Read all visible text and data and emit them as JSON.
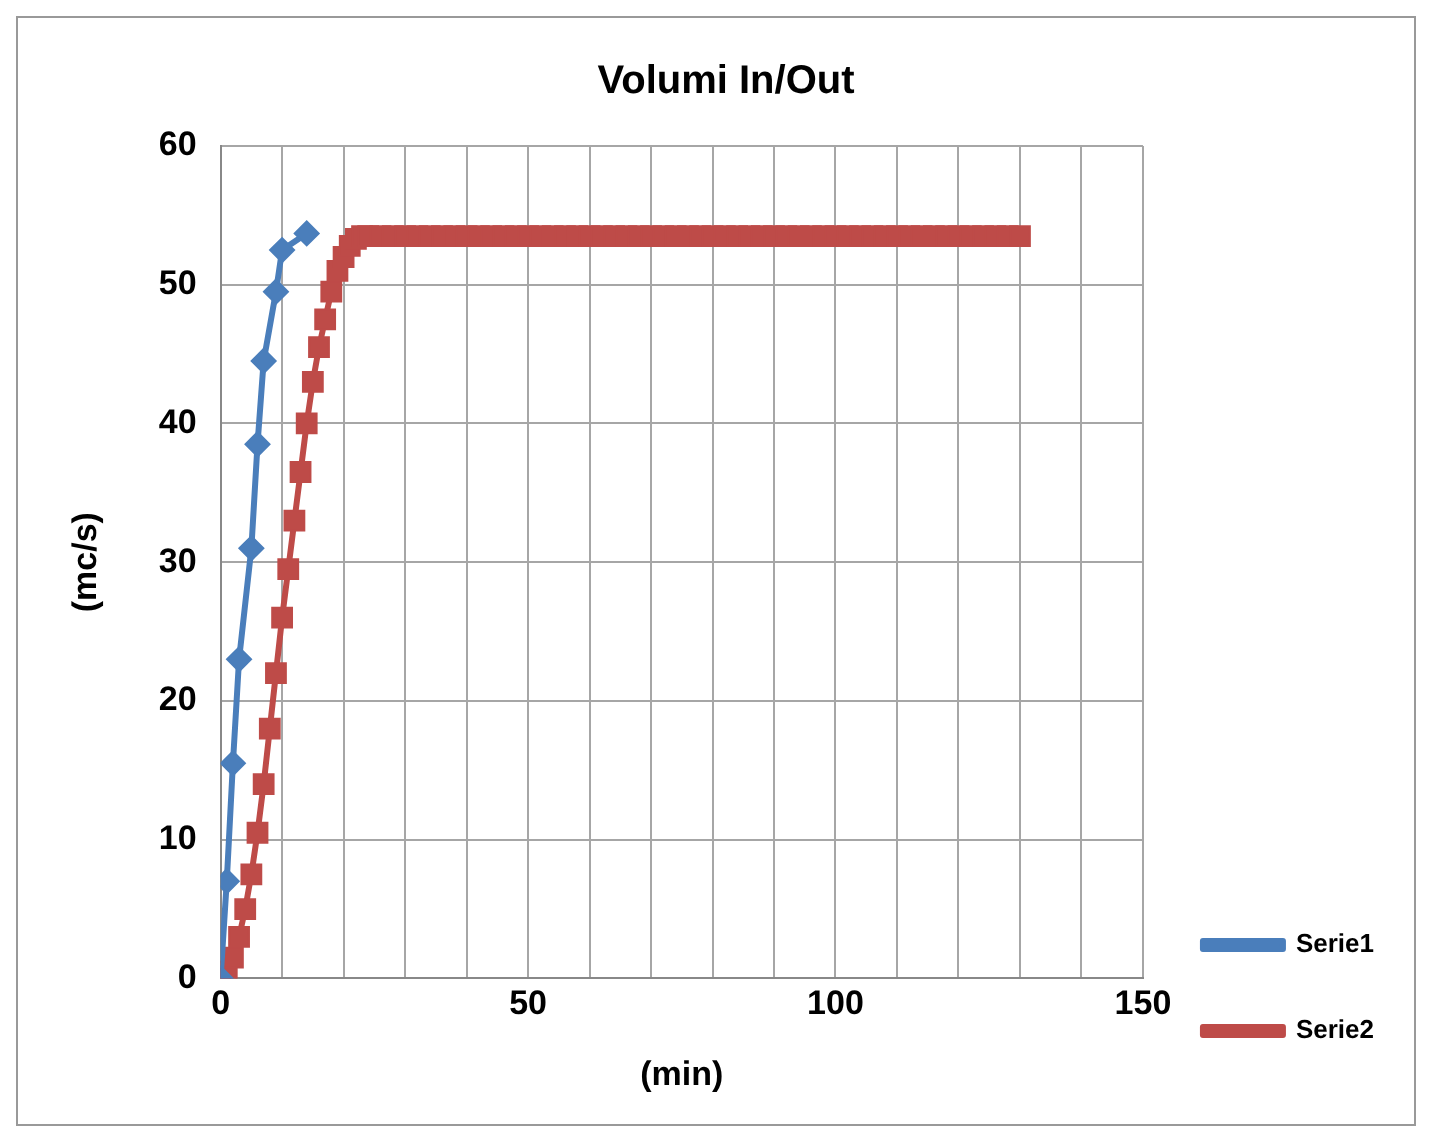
{
  "chart_data": {
    "type": "line",
    "title": "Volumi In/Out",
    "xlabel": "(min)",
    "ylabel": "(mc/s)",
    "xlim": [
      0,
      150
    ],
    "xticks": [
      0,
      {
        "value": 10,
        "label": null
      },
      {
        "value": 20,
        "label": null
      },
      {
        "value": 30,
        "label": null
      },
      {
        "value": 40,
        "label": null
      },
      50,
      {
        "value": 60,
        "label": null
      },
      {
        "value": 70,
        "label": null
      },
      {
        "value": 80,
        "label": null
      },
      {
        "value": 90,
        "label": null
      },
      100,
      {
        "value": 110,
        "label": null
      },
      {
        "value": 120,
        "label": null
      },
      {
        "value": 130,
        "label": null
      },
      {
        "value": 140,
        "label": null
      },
      150
    ],
    "ylim": [
      0,
      60
    ],
    "yticks": [
      0,
      10,
      20,
      30,
      40,
      50,
      60
    ],
    "grid": true,
    "legend": "bottom right",
    "line_style": "solid",
    "series": [
      {
        "name": "Serie1",
        "color": "#4a7ebb",
        "marker": "diamond",
        "x": [
          0,
          1,
          2,
          3,
          5,
          6,
          7,
          9,
          10,
          14
        ],
        "values": [
          0,
          7,
          15.5,
          23,
          31,
          38.5,
          44.5,
          49.5,
          52.5,
          53.7
        ]
      },
      {
        "name": "Serie2",
        "color": "#be4b48",
        "marker": "square",
        "x": [
          0,
          1,
          2,
          3,
          4,
          5,
          6,
          7,
          8,
          9,
          10,
          11,
          12,
          13,
          14,
          15,
          16,
          17,
          18,
          19,
          20,
          21,
          22,
          23,
          24,
          26,
          28,
          30,
          32,
          34,
          36,
          38,
          40,
          42,
          44,
          46,
          48,
          50,
          52,
          54,
          56,
          58,
          60,
          62,
          64,
          66,
          68,
          70,
          72,
          74,
          76,
          78,
          80,
          82,
          84,
          86,
          88,
          90,
          92,
          94,
          96,
          98,
          100,
          102,
          104,
          106,
          108,
          110,
          112,
          114,
          116,
          118,
          120,
          122,
          124,
          126,
          128,
          130
        ],
        "values": [
          0,
          0.5,
          1.5,
          3,
          5,
          7.5,
          10.5,
          14,
          18,
          22,
          26,
          29.5,
          33,
          36.5,
          40,
          43,
          45.5,
          47.5,
          49.5,
          51,
          52,
          52.8,
          53.3,
          53.5,
          53.5,
          53.5,
          53.5,
          53.5,
          53.5,
          53.5,
          53.5,
          53.5,
          53.5,
          53.5,
          53.5,
          53.5,
          53.5,
          53.5,
          53.5,
          53.5,
          53.5,
          53.5,
          53.5,
          53.5,
          53.5,
          53.5,
          53.5,
          53.5,
          53.5,
          53.5,
          53.5,
          53.5,
          53.5,
          53.5,
          53.5,
          53.5,
          53.5,
          53.5,
          53.5,
          53.5,
          53.5,
          53.5,
          53.5,
          53.5,
          53.5,
          53.5,
          53.5,
          53.5,
          53.5,
          53.5,
          53.5,
          53.5,
          53.5,
          53.5,
          53.5,
          53.5,
          53.5,
          53.5
        ]
      }
    ]
  }
}
